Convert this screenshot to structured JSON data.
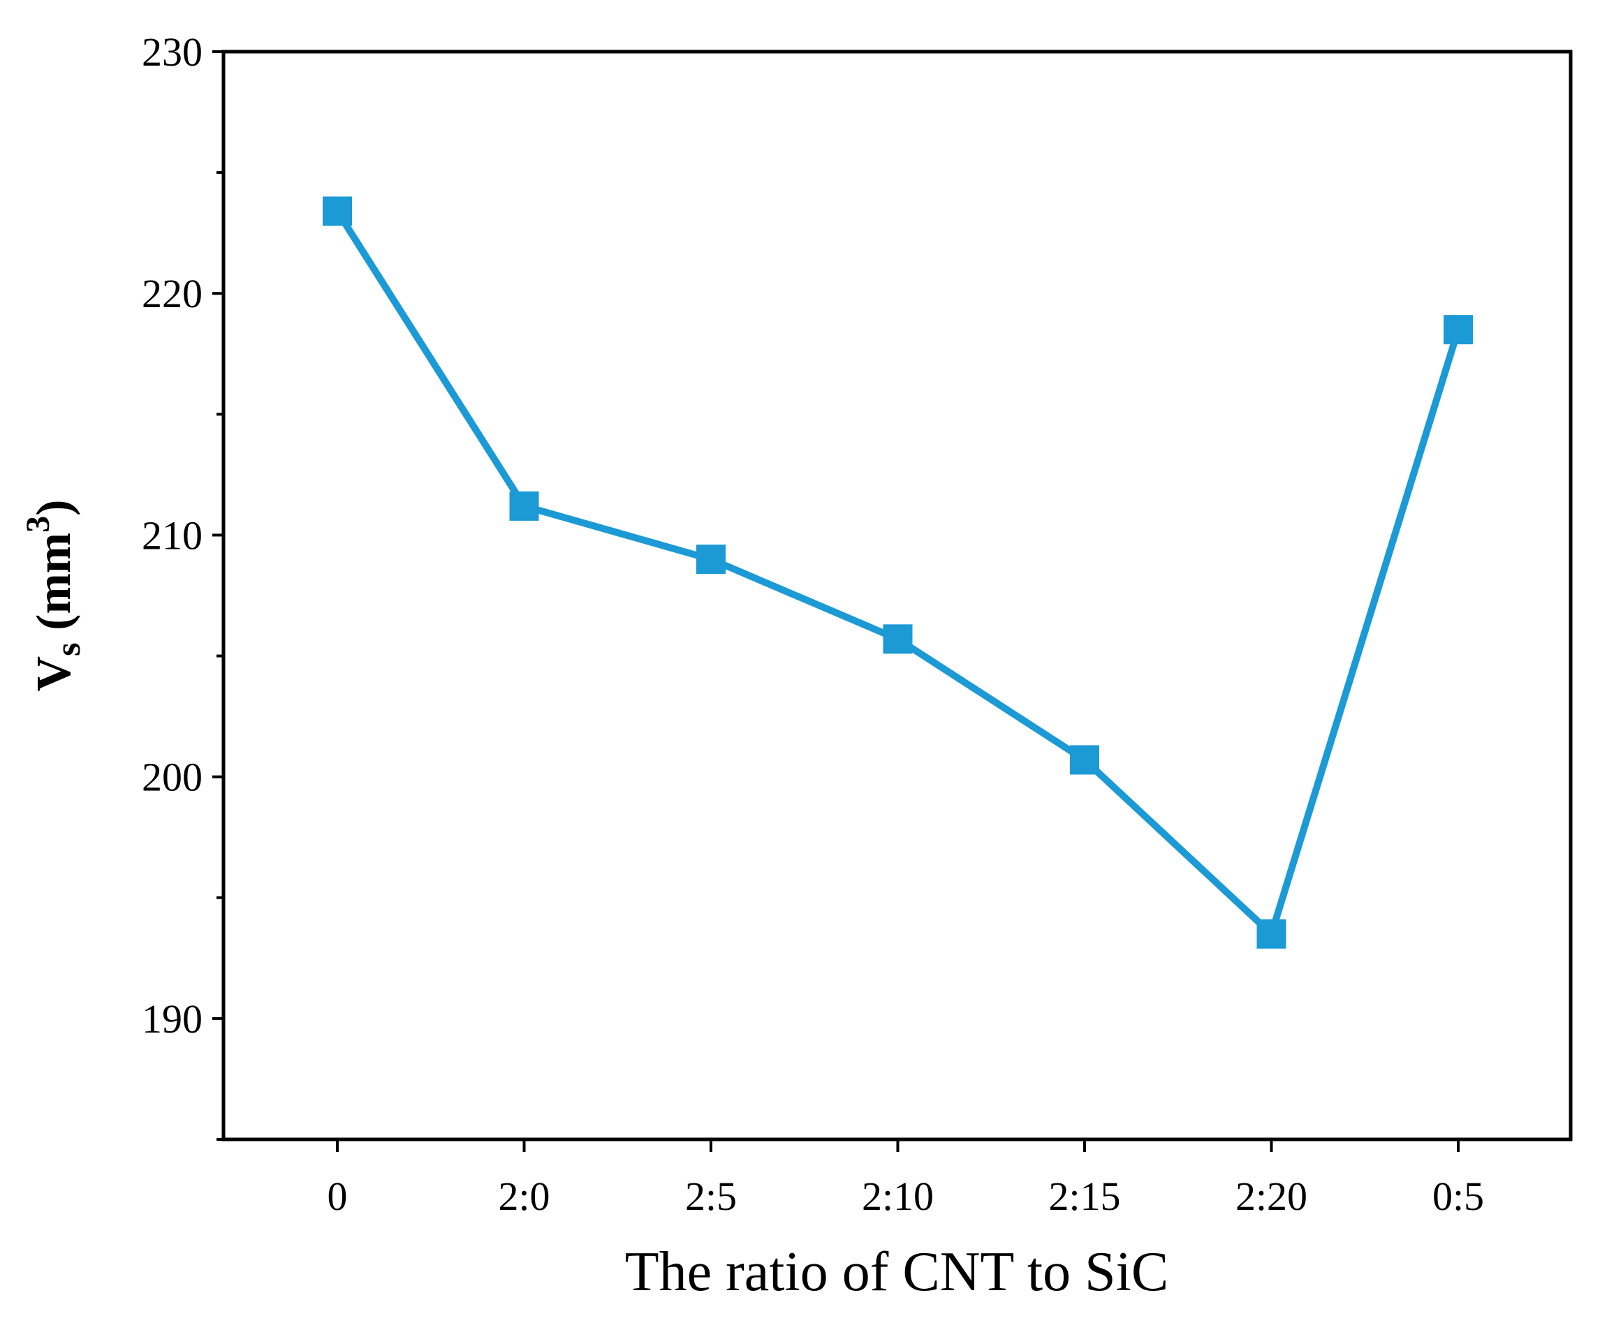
{
  "chart_data": {
    "type": "line",
    "title": "",
    "categories": [
      "0",
      "2:0",
      "2:5",
      "2:10",
      "2:15",
      "2:20",
      "0:5"
    ],
    "series": [
      {
        "name": "Vs",
        "values": [
          223.4,
          211.2,
          209.0,
          205.7,
          200.7,
          193.5,
          218.5
        ],
        "color": "#1c9ad6"
      }
    ],
    "xlabel": "The ratio of CNT to SiC",
    "ylabel": {
      "main": "V",
      "sub": "s",
      "unit_open": " (mm",
      "sup": "3",
      "unit_close": ")"
    },
    "ylim": [
      185,
      230
    ],
    "yticks": [
      "190",
      "200",
      "210",
      "220",
      "230"
    ],
    "grid": false
  }
}
